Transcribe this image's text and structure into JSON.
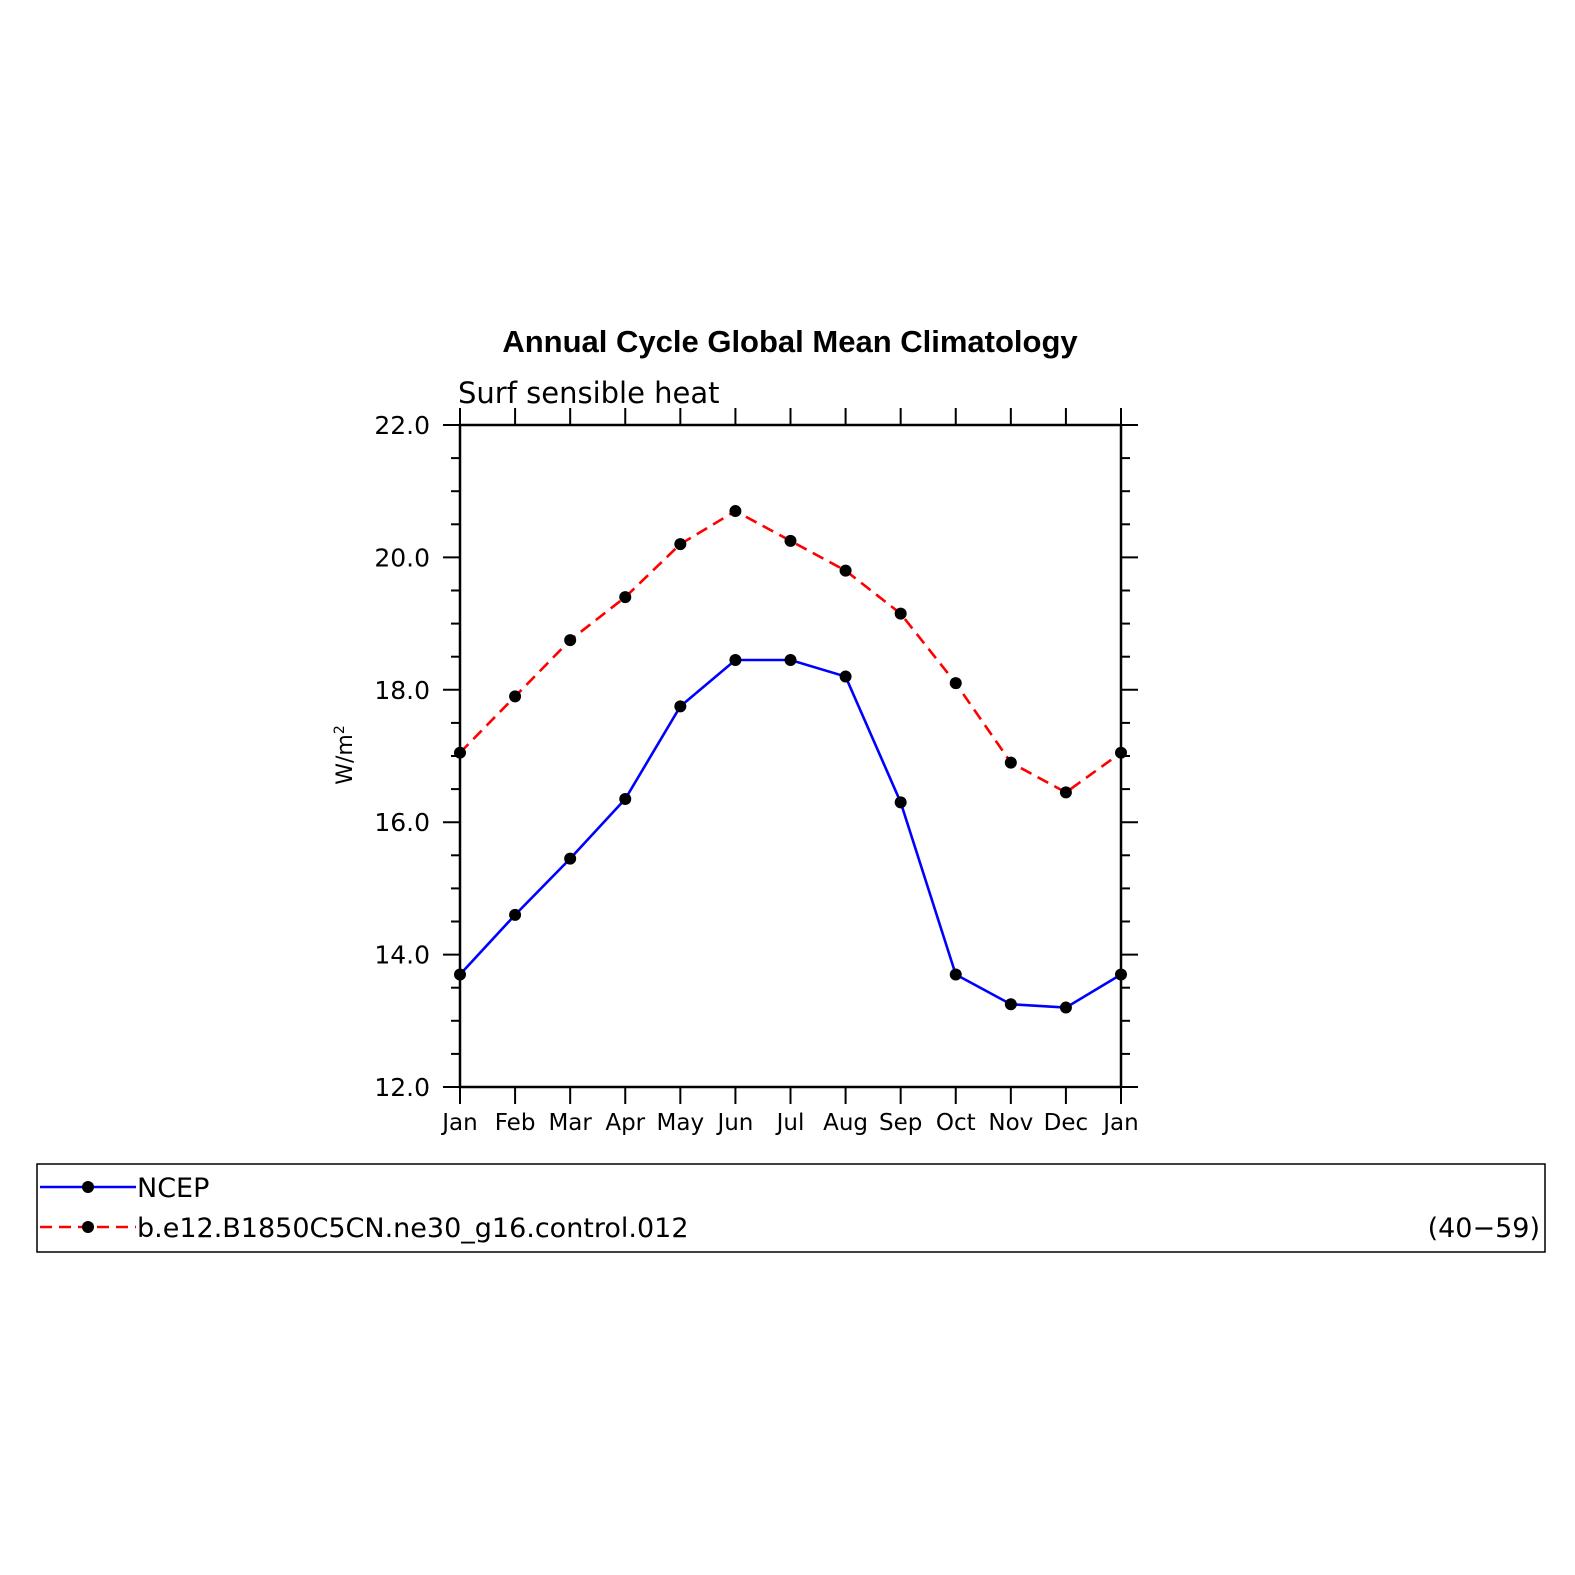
{
  "chart_data": {
    "type": "line",
    "title": "Annual Cycle Global Mean Climatology",
    "subtitle": "Surf sensible heat",
    "ylabel_base": "W/m",
    "ylabel_sup": "2",
    "xlabel": "",
    "categories": [
      "Jan",
      "Feb",
      "Mar",
      "Apr",
      "May",
      "Jun",
      "Jul",
      "Aug",
      "Sep",
      "Oct",
      "Nov",
      "Dec",
      "Jan"
    ],
    "ylim": [
      12.0,
      22.0
    ],
    "yticks": [
      "12.0",
      "14.0",
      "16.0",
      "18.0",
      "20.0",
      "22.0"
    ],
    "grid": false,
    "legend_position": "bottom",
    "series": [
      {
        "name": "NCEP",
        "color": "#0000ff",
        "dash": "solid",
        "marker_color": "#000000",
        "values": [
          13.7,
          14.6,
          15.45,
          16.35,
          17.75,
          18.45,
          18.45,
          18.2,
          16.3,
          13.7,
          13.25,
          13.2,
          13.7
        ]
      },
      {
        "name": "b.e12.B1850C5CN.ne30_g16.control.012",
        "color": "#ff0000",
        "dash": "dashed",
        "marker_color": "#000000",
        "values": [
          17.05,
          17.9,
          18.75,
          19.4,
          20.2,
          20.7,
          20.25,
          19.8,
          19.15,
          18.1,
          16.9,
          16.45,
          17.05
        ]
      }
    ],
    "legend_annotation": "(40−59)"
  }
}
